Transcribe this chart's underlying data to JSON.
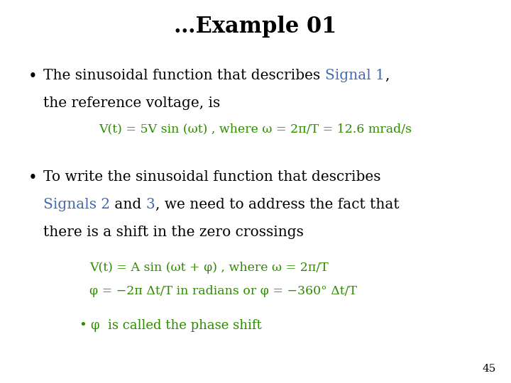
{
  "title": "…Example 01",
  "title_fontsize": 22,
  "title_fontweight": "bold",
  "background_color": "#ffffff",
  "black": "#000000",
  "blue": "#4169B0",
  "green": "#2E8B00",
  "slide_number": "45",
  "body_fontsize": 14.5,
  "formula_fontsize": 12.5,
  "sub_bullet_fontsize": 13,
  "font_family": "DejaVu Serif",
  "bullet1_part1": "The sinusoidal function that describes ",
  "bullet1_blue": "Signal 1",
  "bullet1_comma": ",",
  "bullet1_line2": "the reference voltage, is",
  "formula1": "V(t) = 5V sin (ωt) , where ω = 2π/T = 12.6 mrad/s",
  "bullet2_line1": "To write the sinusoidal function that describes",
  "bullet2_blue1": "Signals 2",
  "bullet2_black2": " and ",
  "bullet2_blue2": "3",
  "bullet2_black3": ", we need to address the fact that",
  "bullet2_line3": "there is a shift in the zero crossings",
  "formula2_line1": "V(t) = A sin (ωt + φ) , where ω = 2π/T",
  "formula2_line2": "φ = −2π Δt/T in radians or φ = −360° Δt/T",
  "bullet3": "φ  is called the phase shift"
}
